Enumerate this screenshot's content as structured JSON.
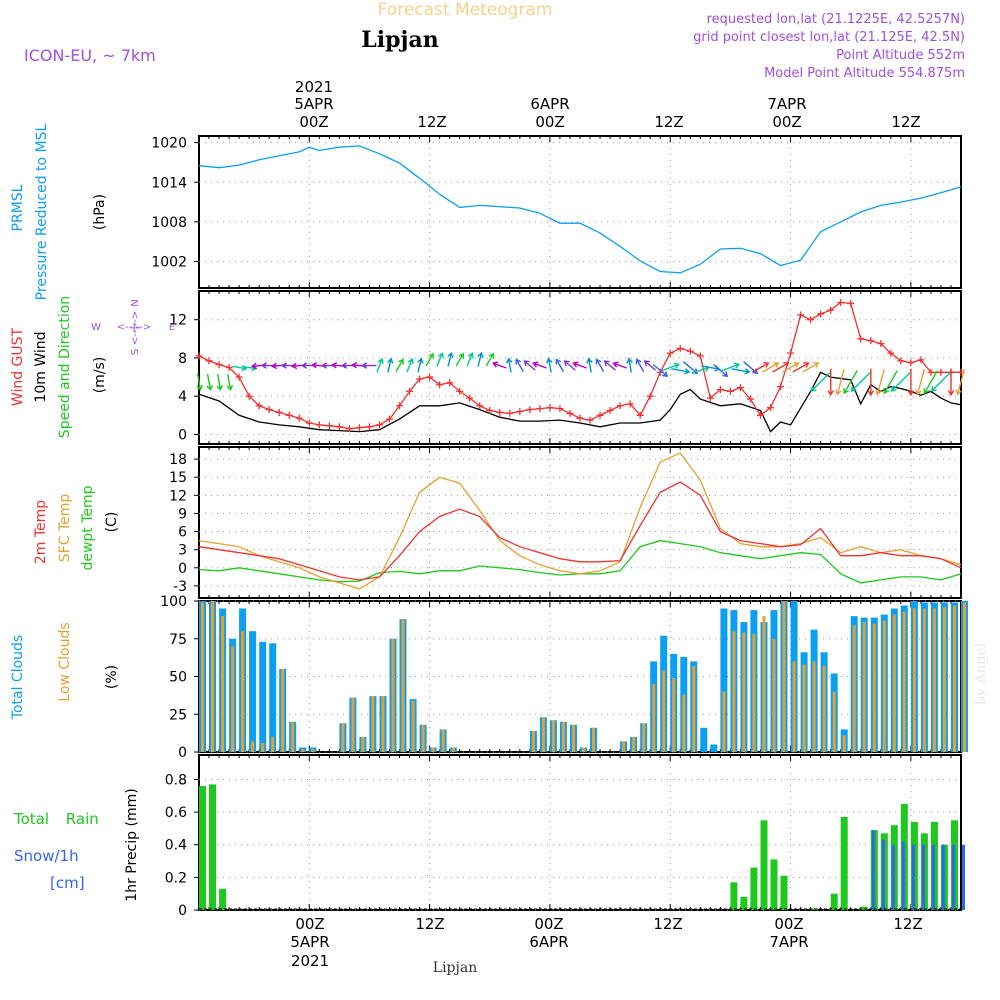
{
  "header": {
    "title": "Forecast Meteogram",
    "location": "Lipjan",
    "model": "ICON-EU, ~ 7km",
    "requested": "requested lon,lat (21.1225E, 42.5257N)",
    "grid_point": "grid point closest lon,lat (21.125E, 42.5N)",
    "point_altitude": "Point Altitude 552m",
    "model_altitude": "Model Point Altitude 554.875m",
    "footer_location": "Lipjan",
    "watermark": "by Angel"
  },
  "time_axis": {
    "top_labels": [
      {
        "line1": "2021",
        "line2": "5APR",
        "line3": "00Z"
      },
      {
        "line1": "",
        "line2": "",
        "line3": "12Z"
      },
      {
        "line1": "",
        "line2": "6APR",
        "line3": "00Z"
      },
      {
        "line1": "",
        "line2": "",
        "line3": "12Z"
      },
      {
        "line1": "",
        "line2": "7APR",
        "line3": "00Z"
      },
      {
        "line1": "",
        "line2": "",
        "line3": "12Z"
      }
    ],
    "bottom_labels": [
      {
        "line1": "00Z",
        "line2": "5APR",
        "line3": "2021"
      },
      {
        "line1": "12Z",
        "line2": "",
        "line3": ""
      },
      {
        "line1": "00Z",
        "line2": "6APR",
        "line3": ""
      },
      {
        "line1": "12Z",
        "line2": "",
        "line3": ""
      },
      {
        "line1": "00Z",
        "line2": "7APR",
        "line3": ""
      },
      {
        "line1": "12Z",
        "line2": "",
        "line3": ""
      }
    ],
    "major_ticks_hours": [
      0,
      12,
      24,
      36,
      48,
      60
    ]
  },
  "colors": {
    "pressure": "#0c9ff0",
    "gust": "#f03232",
    "wind": "#000000",
    "temp": "#f03232",
    "sfc_temp": "#e6a032",
    "dewpoint": "#1ec81e",
    "total_clouds": "#0c9ff0",
    "low_clouds": "#e6a032",
    "rain": "#1ec81e",
    "snow": "#3264f0",
    "meta_text": "#a050dc"
  },
  "chart_data": [
    {
      "type": "line",
      "panel": "pressure",
      "ylabel_lines": [
        "PRMSL",
        "Pressure Reduced to MSL"
      ],
      "unit": "(hPa)",
      "ylim": [
        998,
        1021
      ],
      "yticks": [
        1002,
        1008,
        1014,
        1020
      ],
      "x_hours_start": -11,
      "x_hours_end": 65,
      "series": [
        {
          "name": "PRMSL",
          "x": [
            -11,
            -9,
            -7,
            -5,
            -3,
            -1,
            0,
            1,
            3,
            5,
            7,
            9,
            11,
            13,
            15,
            17,
            19,
            21,
            23,
            25,
            27,
            29,
            31,
            33,
            35,
            37,
            39,
            41,
            43,
            45,
            47,
            49,
            51,
            53,
            55,
            57,
            59,
            61,
            63,
            65
          ],
          "y": [
            1016.5,
            1016.2,
            1016.6,
            1017.4,
            1018,
            1018.6,
            1019.3,
            1018.8,
            1019.3,
            1019.5,
            1018.3,
            1016.9,
            1014.6,
            1012.2,
            1010.2,
            1010.5,
            1010.3,
            1010.1,
            1009.3,
            1007.8,
            1007.8,
            1006.3,
            1004.3,
            1002.1,
            1000.5,
            1000.3,
            1001.6,
            1003.9,
            1004.0,
            1003.2,
            1001.4,
            1002.2,
            1006.5,
            1008.0,
            1009.5,
            1010.5,
            1011.0,
            1011.6,
            1012.4,
            1013.3
          ]
        }
      ]
    },
    {
      "type": "line",
      "panel": "wind",
      "ylabel_lines": [
        "Wind GUST",
        "10m Wind",
        "Speed and Direction"
      ],
      "unit": "(m/s)",
      "compass": {
        "n": "N",
        "s": "S",
        "w": "W",
        "e": "E"
      },
      "ylim": [
        -1,
        15
      ],
      "yticks": [
        0,
        4,
        8,
        12
      ],
      "x_hours_start": -11,
      "x_hours_end": 65,
      "series": [
        {
          "name": "Wind GUST",
          "x": [
            -11,
            -10,
            -9,
            -8,
            -7,
            -6,
            -5,
            -4,
            -3,
            -2,
            -1,
            0,
            1,
            2,
            3,
            4,
            5,
            6,
            7,
            8,
            9,
            10,
            11,
            12,
            13,
            14,
            15,
            16,
            17,
            18,
            19,
            20,
            21,
            22,
            23,
            24,
            25,
            26,
            27,
            28,
            29,
            30,
            31,
            32,
            33,
            34,
            35,
            36,
            37,
            38,
            39,
            40,
            41,
            42,
            43,
            44,
            45,
            46,
            47,
            48,
            49,
            50,
            51,
            52,
            53,
            54,
            55,
            56,
            57,
            58,
            59,
            60,
            61,
            62,
            63,
            64,
            65
          ],
          "y": [
            8.2,
            7.7,
            7.3,
            7.0,
            6.0,
            4.0,
            3.0,
            2.6,
            2.3,
            2.0,
            1.7,
            1.2,
            1.0,
            0.9,
            0.8,
            0.6,
            0.7,
            0.8,
            1.0,
            1.6,
            3.0,
            4.5,
            5.8,
            6.0,
            5.2,
            5.4,
            4.5,
            3.8,
            3.0,
            2.5,
            2.3,
            2.2,
            2.4,
            2.6,
            2.7,
            2.8,
            2.7,
            2.2,
            1.7,
            1.5,
            2.0,
            2.5,
            3.0,
            3.2,
            2.0,
            4.0,
            6.5,
            8.5,
            9.0,
            8.7,
            8.2,
            3.8,
            4.7,
            4.5,
            4.9,
            3.7,
            2.0,
            2.8,
            5.0,
            8.5,
            12.5,
            12.0,
            12.6,
            13.0,
            13.8,
            13.7,
            10.0,
            9.8,
            9.5,
            8.5,
            7.7,
            7.5,
            7.8,
            6.5,
            6.5,
            6.5,
            6.5
          ]
        },
        {
          "name": "10m Wind",
          "x": [
            -11,
            -9,
            -7,
            -5,
            -3,
            -1,
            1,
            3,
            5,
            7,
            9,
            11,
            13,
            15,
            17,
            19,
            21,
            23,
            25,
            27,
            29,
            31,
            33,
            35,
            36,
            37,
            38,
            39,
            41,
            43,
            45,
            46,
            47,
            48,
            50,
            51,
            52,
            54,
            55,
            56,
            57,
            58,
            59,
            60,
            61,
            62,
            63,
            64,
            65
          ],
          "y": [
            4.2,
            3.5,
            2.0,
            1.3,
            1.0,
            0.8,
            0.5,
            0.4,
            0.3,
            0.5,
            1.6,
            3.0,
            3.0,
            3.3,
            2.6,
            1.8,
            1.4,
            1.4,
            1.5,
            1.2,
            0.8,
            1.2,
            1.2,
            1.5,
            2.6,
            4.2,
            4.7,
            3.7,
            3.0,
            3.2,
            2.5,
            0.3,
            1.3,
            1.0,
            4.5,
            6.5,
            6.0,
            5.7,
            3.2,
            5.2,
            4.5,
            5.0,
            4.8,
            4.5,
            4.1,
            4.5,
            3.8,
            3.3,
            3.1
          ]
        }
      ],
      "wind_arrow_colors": [
        "#1ec81e",
        "#00c896",
        "#0096c8",
        "#3264f0",
        "#7832dc",
        "#b400c8",
        "#e6a032",
        "#f03232"
      ]
    },
    {
      "type": "line",
      "panel": "temperature",
      "ylabel_lines": [
        "2m Temp",
        "SFC Temp",
        "dewpt Temp"
      ],
      "unit": "(C)",
      "ylim": [
        -5,
        20
      ],
      "yticks": [
        -3,
        0,
        3,
        6,
        9,
        12,
        15,
        18
      ],
      "x_hours_start": -11,
      "x_hours_end": 65,
      "series": [
        {
          "name": "2m Temp",
          "x": [
            -11,
            -9,
            -7,
            -5,
            -3,
            -1,
            1,
            3,
            5,
            7,
            9,
            11,
            13,
            15,
            17,
            19,
            21,
            23,
            25,
            27,
            29,
            31,
            33,
            35,
            37,
            39,
            41,
            43,
            45,
            47,
            49,
            51,
            53,
            55,
            57,
            59,
            61,
            63,
            65
          ],
          "y": [
            3.5,
            3.0,
            2.5,
            2.0,
            1.5,
            0.5,
            -0.5,
            -1.5,
            -2.0,
            -1.5,
            2.0,
            6.0,
            8.5,
            9.7,
            8.5,
            5.0,
            3.5,
            2.5,
            1.5,
            1.0,
            1.0,
            1.2,
            7.0,
            12.5,
            14.2,
            12.0,
            6.0,
            4.5,
            4.0,
            3.5,
            3.8,
            6.5,
            2.0,
            2.0,
            2.5,
            2.0,
            2.0,
            1.5,
            0.0
          ]
        },
        {
          "name": "SFC Temp",
          "x": [
            -11,
            -9,
            -7,
            -5,
            -3,
            -1,
            1,
            3,
            5,
            7,
            9,
            11,
            13,
            15,
            17,
            19,
            21,
            23,
            25,
            27,
            29,
            31,
            33,
            35,
            37,
            39,
            41,
            43,
            45,
            47,
            49,
            51,
            53,
            55,
            57,
            59,
            61,
            63,
            65
          ],
          "y": [
            4.5,
            4.0,
            3.5,
            2.0,
            1.0,
            0.0,
            -1.5,
            -2.5,
            -3.5,
            -1.5,
            5.0,
            12.5,
            15.0,
            14.0,
            9.5,
            4.5,
            2.0,
            0.5,
            -0.5,
            -1.0,
            -0.5,
            1.0,
            10.0,
            17.5,
            19.0,
            14.5,
            6.5,
            4.0,
            3.5,
            3.5,
            4.0,
            5.0,
            2.5,
            3.5,
            2.5,
            3.0,
            2.0,
            1.5,
            0.5
          ]
        },
        {
          "name": "dewpt Temp",
          "x": [
            -11,
            -9,
            -7,
            -5,
            -3,
            -1,
            1,
            3,
            5,
            7,
            9,
            11,
            13,
            15,
            17,
            19,
            21,
            23,
            25,
            27,
            29,
            31,
            33,
            35,
            37,
            39,
            41,
            43,
            45,
            47,
            49,
            51,
            53,
            55,
            57,
            59,
            61,
            63,
            65
          ],
          "y": [
            -0.3,
            -0.5,
            0.0,
            -0.5,
            -1.0,
            -1.5,
            -2.0,
            -2.3,
            -2.2,
            -0.8,
            -0.6,
            -1.0,
            -0.5,
            -0.5,
            0.3,
            0.0,
            -0.3,
            -0.8,
            -1.2,
            -1.0,
            -1.0,
            -0.5,
            3.5,
            4.5,
            4.0,
            3.5,
            2.5,
            2.0,
            1.5,
            2.0,
            2.5,
            2.2,
            -1.0,
            -2.5,
            -2.0,
            -1.5,
            -1.5,
            -2.0,
            -1.0
          ]
        }
      ]
    },
    {
      "type": "bar",
      "panel": "clouds",
      "ylabel_lines": [
        "Total Clouds",
        "Low Clouds"
      ],
      "unit": "(%)",
      "ylim": [
        0,
        100
      ],
      "yticks": [
        0,
        25,
        50,
        75,
        100
      ],
      "x_hours_start": -11,
      "x_hours_end": 65,
      "series": [
        {
          "name": "Total Clouds",
          "values": [
            100,
            100,
            95,
            75,
            95,
            80,
            73,
            72,
            55,
            20,
            3,
            3,
            0,
            0,
            19,
            36,
            10,
            37,
            37,
            75,
            88,
            35,
            18,
            3,
            15,
            3,
            0,
            0,
            0,
            0,
            0,
            0,
            0,
            14,
            23,
            21,
            20,
            18,
            3,
            16,
            0,
            0,
            7,
            10,
            19,
            60,
            77,
            65,
            63,
            60,
            16,
            5,
            95,
            94,
            86,
            94,
            86,
            94,
            100,
            100,
            66,
            81,
            66,
            52,
            15,
            90,
            89,
            89,
            91,
            95,
            97,
            100,
            99,
            99,
            99,
            99,
            100
          ]
        },
        {
          "name": "Low Clouds",
          "values": [
            99,
            100,
            90,
            70,
            80,
            7,
            6,
            10,
            55,
            20,
            2,
            2,
            0,
            0,
            19,
            36,
            10,
            37,
            37,
            75,
            88,
            34,
            18,
            3,
            15,
            3,
            0,
            0,
            0,
            0,
            0,
            0,
            0,
            14,
            23,
            21,
            20,
            18,
            3,
            16,
            0,
            0,
            7,
            10,
            19,
            45,
            54,
            49,
            38,
            57,
            0,
            0,
            40,
            80,
            79,
            78,
            90,
            75,
            100,
            60,
            58,
            60,
            57,
            40,
            11,
            84,
            86,
            85,
            87,
            91,
            93,
            95,
            95,
            95,
            96,
            97,
            99
          ]
        }
      ]
    },
    {
      "type": "bar",
      "panel": "precip",
      "ylabel_lines": [
        "1hr Precip (mm)"
      ],
      "left_labels": [
        "Total Rain",
        "Snow/1h",
        "[cm]"
      ],
      "ylim": [
        0,
        0.95
      ],
      "yticks": [
        0,
        0.2,
        0.4,
        0.6,
        0.8
      ],
      "x_hours_start": -11,
      "x_hours_end": 65,
      "series": [
        {
          "name": "Total Rain",
          "values": [
            0.76,
            0.77,
            0.13,
            0,
            0,
            0,
            0,
            0,
            0,
            0,
            0,
            0,
            0,
            0,
            0,
            0,
            0,
            0,
            0,
            0,
            0,
            0,
            0,
            0,
            0,
            0,
            0,
            0,
            0,
            0,
            0,
            0,
            0,
            0,
            0,
            0,
            0,
            0,
            0,
            0,
            0,
            0,
            0,
            0,
            0,
            0,
            0,
            0,
            0,
            0,
            0,
            0,
            0,
            0.17,
            0.08,
            0.26,
            0.55,
            0.31,
            0.21,
            0,
            0,
            0.01,
            0,
            0.1,
            0.57,
            0,
            0.02,
            0.49,
            0.47,
            0.52,
            0.65,
            0.54,
            0.47,
            0.54,
            0.4,
            0.55,
            0
          ]
        },
        {
          "name": "Snow/1h",
          "values": [
            0,
            0,
            0,
            0,
            0,
            0,
            0,
            0,
            0,
            0,
            0,
            0,
            0,
            0,
            0,
            0,
            0,
            0,
            0,
            0,
            0,
            0,
            0,
            0,
            0,
            0,
            0,
            0,
            0,
            0,
            0,
            0,
            0,
            0,
            0,
            0,
            0,
            0,
            0,
            0,
            0,
            0,
            0,
            0,
            0,
            0,
            0,
            0,
            0,
            0,
            0,
            0,
            0,
            0,
            0,
            0,
            0,
            0,
            0,
            0,
            0,
            0,
            0,
            0,
            0,
            0,
            0,
            0.49,
            0.43,
            0.4,
            0.42,
            0.4,
            0.4,
            0.4,
            0.4,
            0.4,
            0.4
          ]
        }
      ]
    }
  ]
}
